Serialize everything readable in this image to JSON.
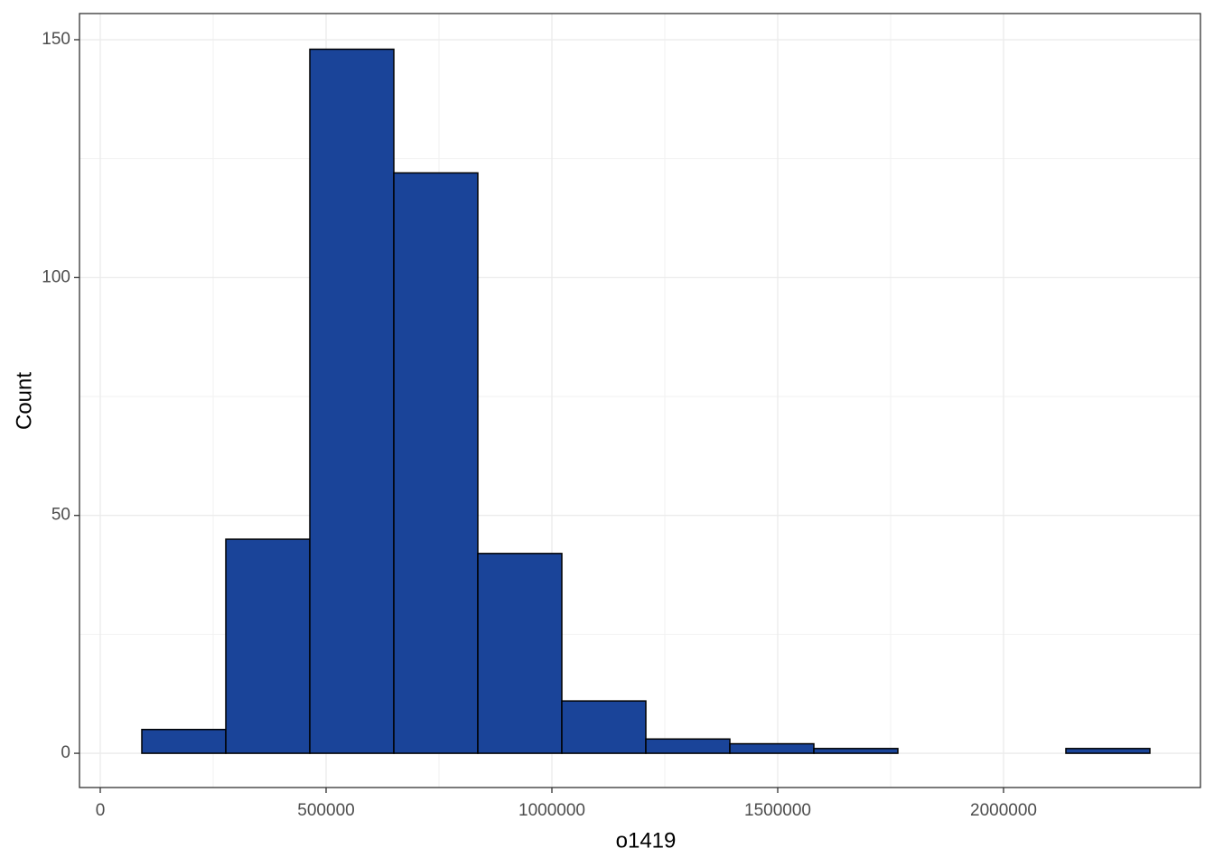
{
  "chart_data": {
    "type": "histogram",
    "x_label": "o1419",
    "y_label": "Count",
    "bins": [
      92000,
      278000,
      464000,
      650000,
      836000,
      1022000,
      1208000,
      1394000,
      1580000,
      1766000,
      1952000,
      2138000,
      2324000
    ],
    "values": [
      5,
      45,
      148,
      122,
      42,
      11,
      3,
      2,
      1,
      0,
      0,
      1
    ],
    "color": "#1a4499",
    "edge_color": "#000000",
    "xlim": [
      -46000,
      2436000
    ],
    "xticks": [
      0,
      500000,
      1000000,
      1500000,
      2000000
    ],
    "ylim": [
      -7.2,
      155.5
    ],
    "yticks": [
      0,
      50,
      100,
      150
    ],
    "grid": true
  }
}
